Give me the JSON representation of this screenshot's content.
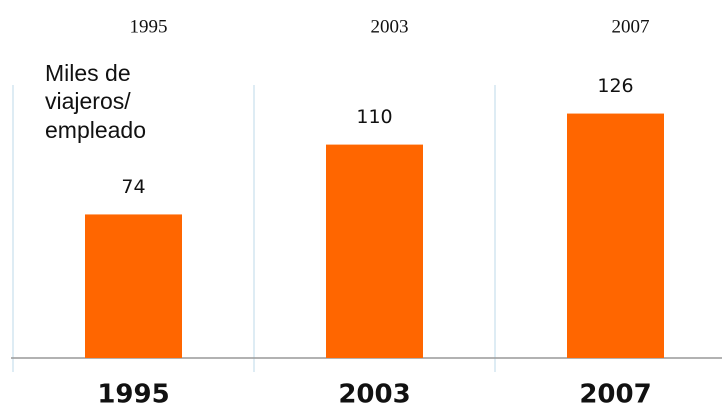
{
  "chart_data": {
    "type": "bar",
    "ylabel": [
      "Miles de",
      "viajeros/",
      "empleado"
    ],
    "categories": [
      "1995",
      "2003",
      "2007"
    ],
    "values": [
      74,
      110,
      126
    ],
    "color": "#ff6600"
  }
}
